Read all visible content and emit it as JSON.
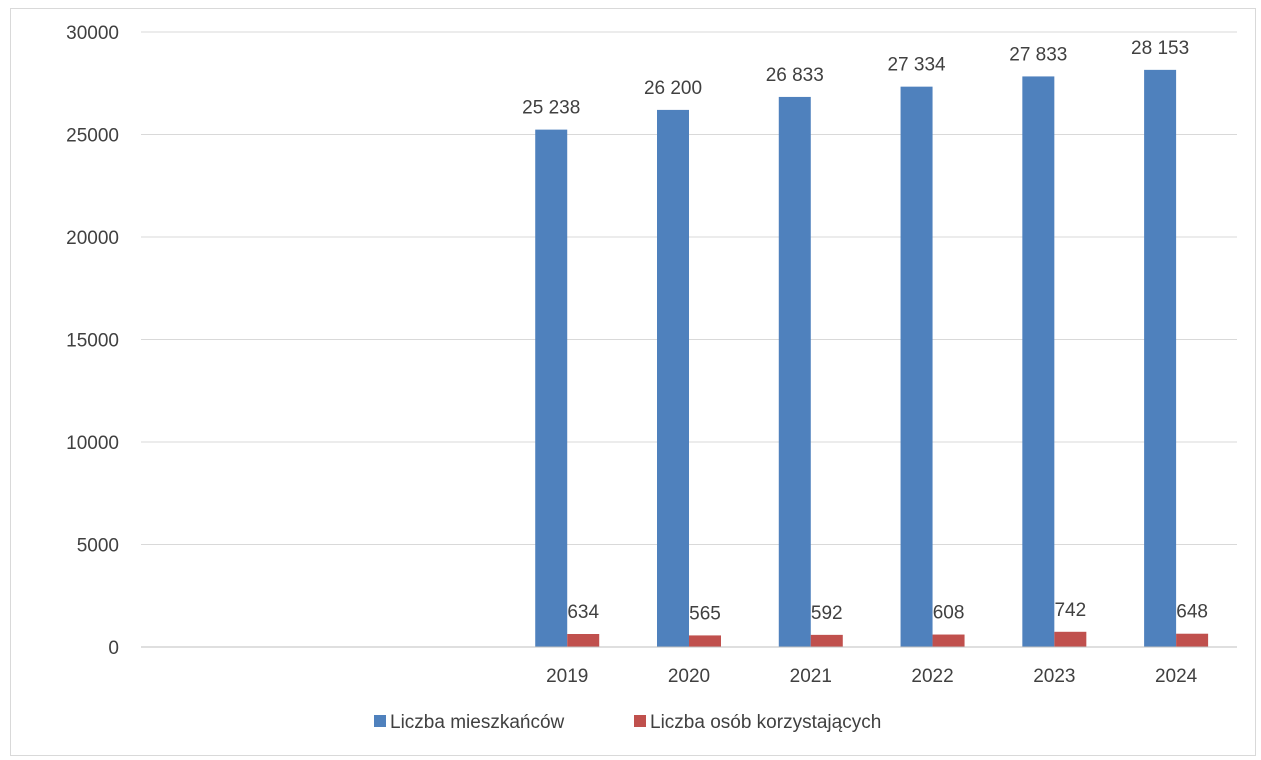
{
  "chart_data": {
    "type": "bar",
    "title": "",
    "xlabel": "",
    "ylabel": "",
    "ylim": [
      0,
      30000
    ],
    "y_ticks": [
      "0",
      "5000",
      "10000",
      "15000",
      "20000",
      "25000",
      "30000"
    ],
    "categories": [
      "",
      "",
      "",
      "2019",
      "2020",
      "2021",
      "2022",
      "2023",
      "2024"
    ],
    "series": [
      {
        "name": "Liczba mieszkańców",
        "color": "#4f81bd",
        "values": [
          null,
          null,
          null,
          25238,
          26200,
          26833,
          27334,
          27833,
          28153
        ],
        "labels": [
          "",
          "",
          "",
          "25 238",
          "26 200",
          "26 833",
          "27 334",
          "27 833",
          "28 153"
        ]
      },
      {
        "name": "Liczba osób korzystających",
        "color": "#c0504d",
        "values": [
          null,
          null,
          null,
          634,
          565,
          592,
          608,
          742,
          648
        ],
        "labels": [
          "",
          "",
          "",
          "634",
          "565",
          "592",
          "608",
          "742",
          "648"
        ]
      }
    ],
    "grid": true,
    "legend_position": "bottom"
  }
}
